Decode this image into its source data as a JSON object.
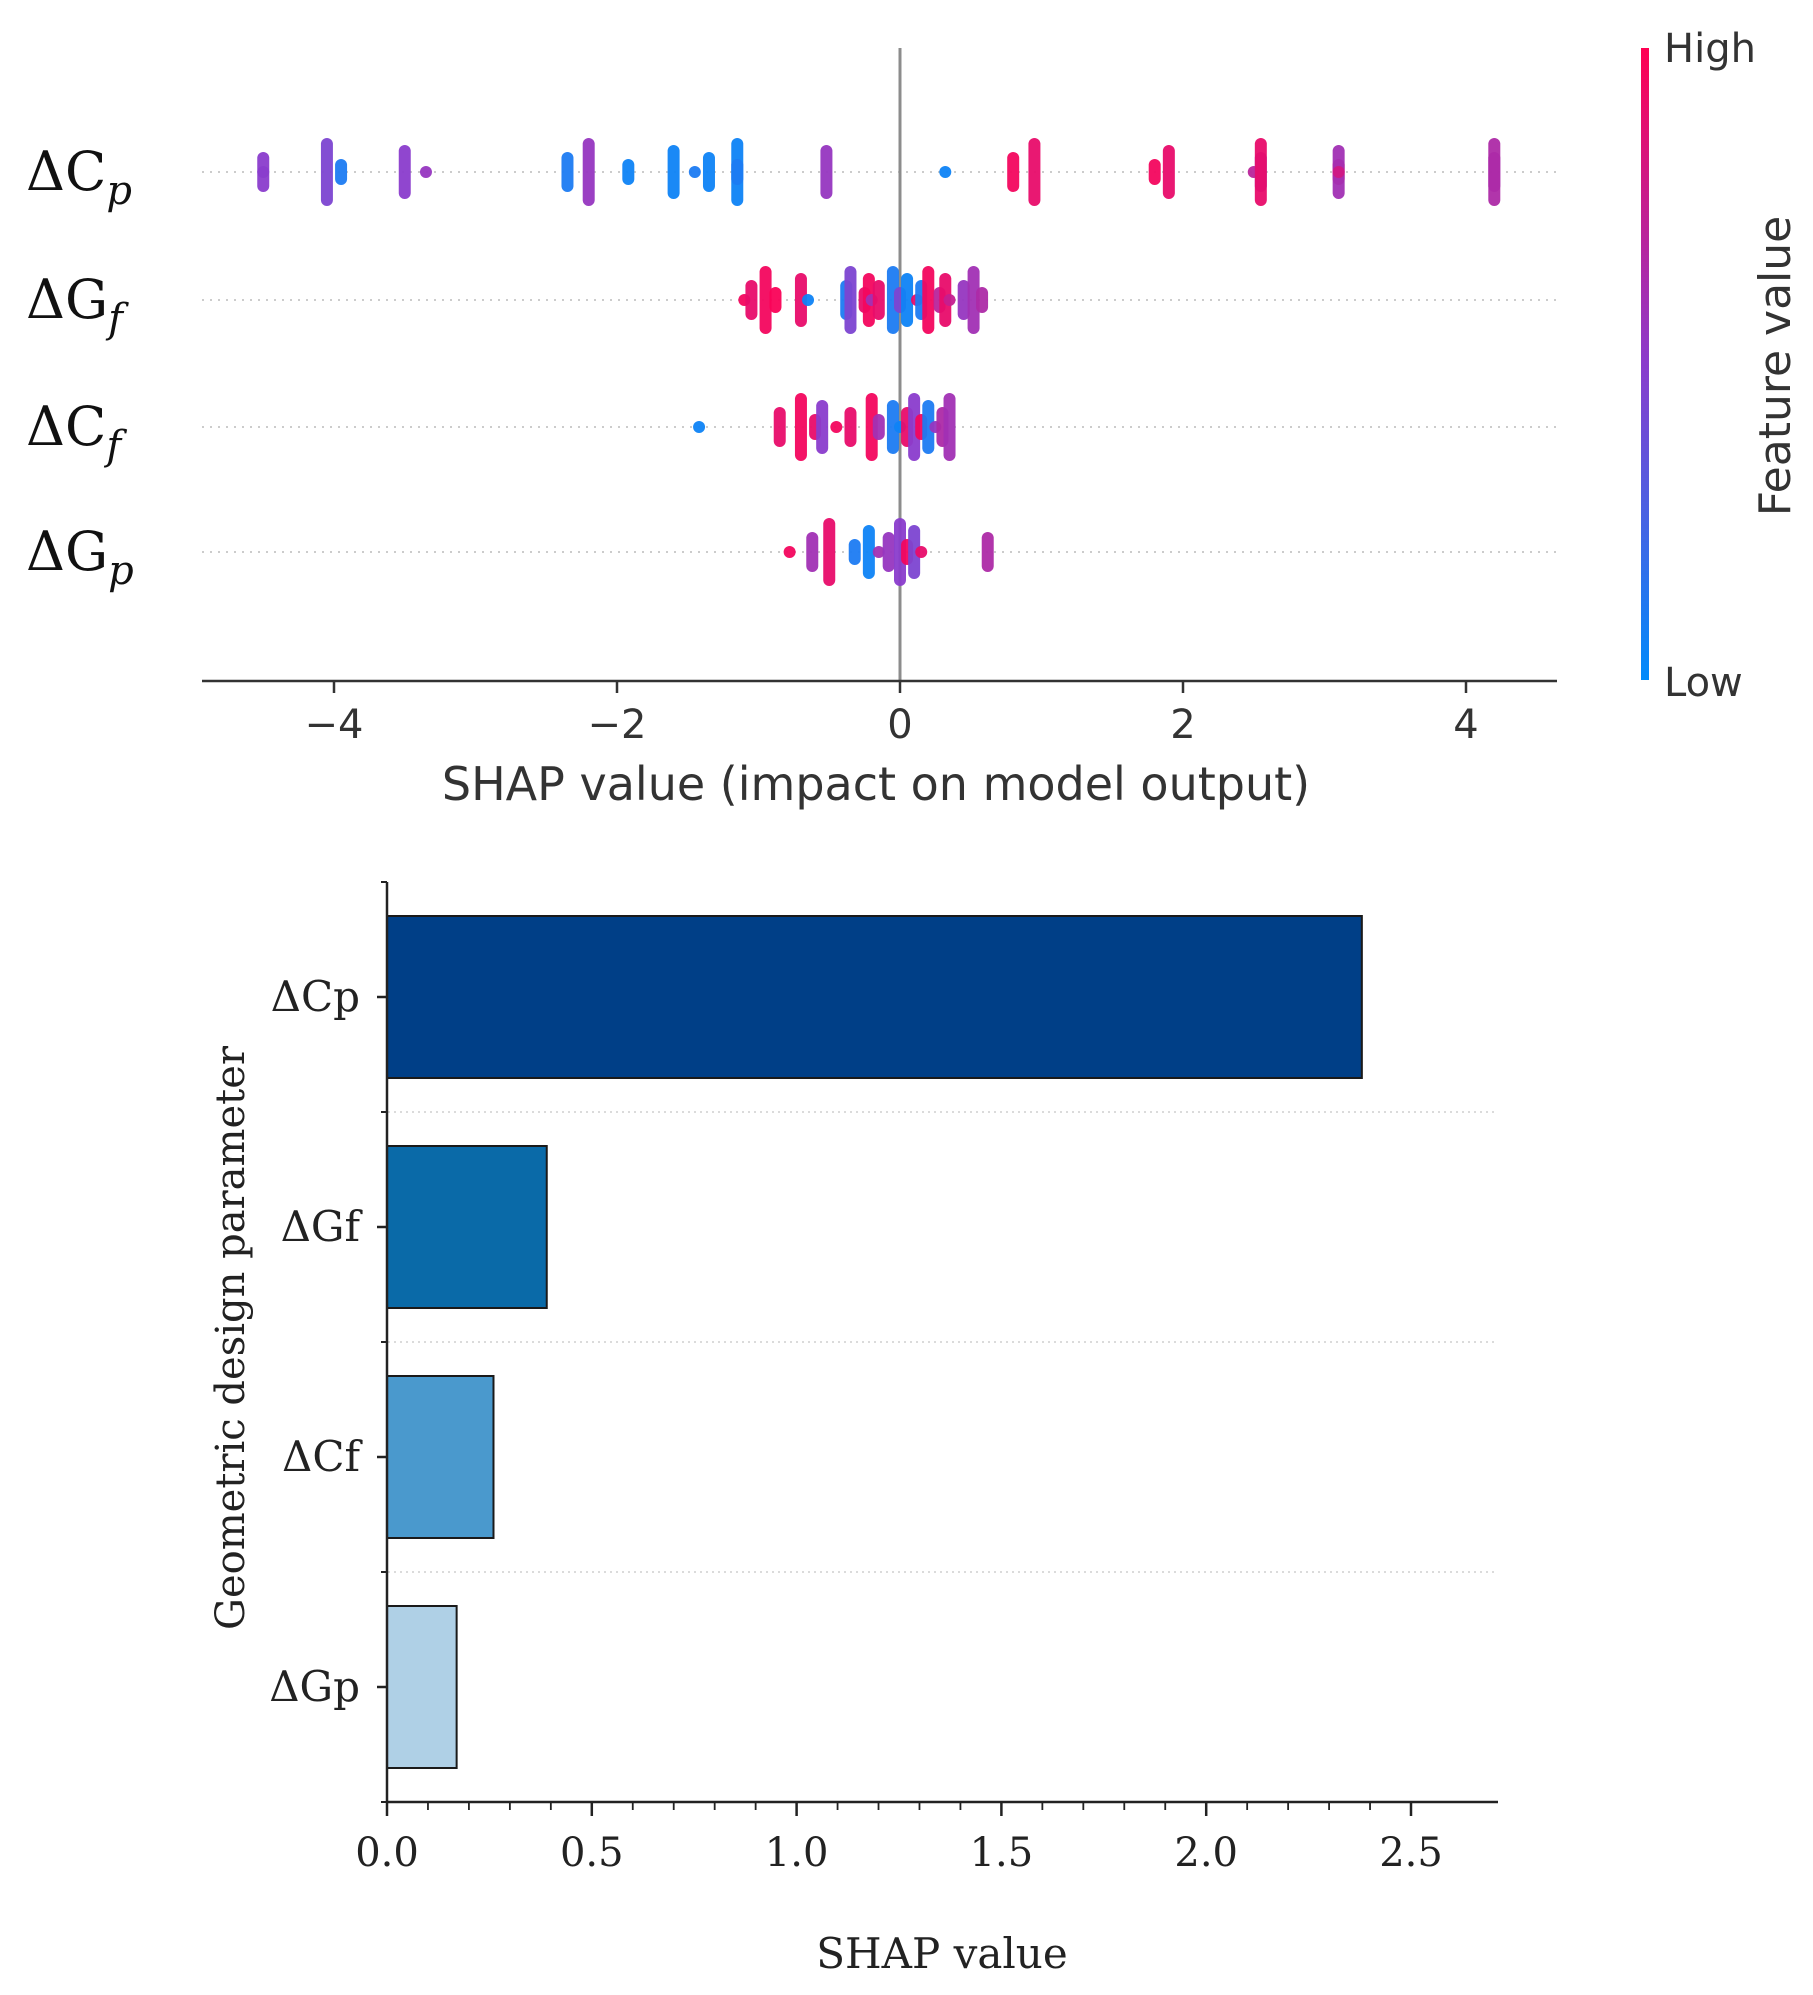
{
  "chart_data": [
    {
      "type": "scatter",
      "subtype": "shap-beeswarm",
      "xlabel": "SHAP value (impact on model output)",
      "xlim": [
        -4.9,
        4.6
      ],
      "xticks": [
        -4,
        -2,
        0,
        2,
        4
      ],
      "xtick_labels": [
        "−4",
        "−2",
        "0",
        "2",
        "4"
      ],
      "features": [
        {
          "name": "ΔC",
          "sub": "p"
        },
        {
          "name": "ΔG",
          "sub": "f"
        },
        {
          "name": "ΔC",
          "sub": "f"
        },
        {
          "name": "ΔG",
          "sub": "p"
        }
      ],
      "colorbar": {
        "label": "Feature value",
        "high_label": "High",
        "low_label": "Low",
        "high_color": "#ff0052",
        "mid_color": "#8a3ccc",
        "low_color": "#008bfb"
      },
      "points": [
        [
          [
            -4.5,
            0.45
          ],
          [
            -4.5,
            0.5
          ],
          [
            -4.05,
            0.45
          ],
          [
            -3.95,
            0.1
          ],
          [
            -3.5,
            0.5
          ],
          [
            -3.35,
            0.55
          ],
          [
            -2.35,
            0.1
          ],
          [
            -2.2,
            0.55
          ],
          [
            -1.92,
            0.05
          ],
          [
            -1.6,
            0.05
          ],
          [
            -1.45,
            0.1
          ],
          [
            -1.35,
            0.05
          ],
          [
            -1.15,
            0.05
          ],
          [
            -1.15,
            0.1
          ],
          [
            -0.52,
            0.55
          ],
          [
            0.32,
            0.05
          ],
          [
            0.8,
            0.95
          ],
          [
            0.95,
            0.9
          ],
          [
            1.8,
            0.95
          ],
          [
            1.9,
            0.9
          ],
          [
            2.5,
            0.7
          ],
          [
            2.55,
            0.55
          ],
          [
            2.55,
            0.9
          ],
          [
            3.1,
            0.95
          ],
          [
            3.1,
            0.6
          ],
          [
            3.1,
            0.8
          ],
          [
            4.2,
            0.6
          ],
          [
            4.2,
            0.65
          ]
        ],
        [
          [
            -1.1,
            0.95
          ],
          [
            -1.05,
            0.9
          ],
          [
            -0.95,
            0.95
          ],
          [
            -0.88,
            0.98
          ],
          [
            -0.7,
            0.9
          ],
          [
            -0.65,
            0.05
          ],
          [
            -0.38,
            0.1
          ],
          [
            -0.35,
            0.45
          ],
          [
            -0.25,
            0.9
          ],
          [
            -0.22,
            0.95
          ],
          [
            -0.2,
            0.6
          ],
          [
            -0.15,
            0.9
          ],
          [
            -0.05,
            0.1
          ],
          [
            0.0,
            0.45
          ],
          [
            0.05,
            0.05
          ],
          [
            0.12,
            0.9
          ],
          [
            0.15,
            0.1
          ],
          [
            0.2,
            0.95
          ],
          [
            0.28,
            0.7
          ],
          [
            0.32,
            0.9
          ],
          [
            0.35,
            0.75
          ],
          [
            0.45,
            0.55
          ],
          [
            0.52,
            0.6
          ],
          [
            0.58,
            0.65
          ]
        ],
        [
          [
            -1.42,
            0.05
          ],
          [
            -0.85,
            0.9
          ],
          [
            -0.7,
            0.95
          ],
          [
            -0.6,
            0.9
          ],
          [
            -0.55,
            0.5
          ],
          [
            -0.45,
            0.95
          ],
          [
            -0.35,
            0.9
          ],
          [
            -0.2,
            0.95
          ],
          [
            -0.15,
            0.6
          ],
          [
            -0.05,
            0.1
          ],
          [
            0.0,
            0.05
          ],
          [
            0.05,
            0.9
          ],
          [
            0.1,
            0.5
          ],
          [
            0.15,
            0.95
          ],
          [
            0.2,
            0.1
          ],
          [
            0.25,
            0.55
          ],
          [
            0.3,
            0.65
          ],
          [
            0.35,
            0.6
          ]
        ],
        [
          [
            -0.78,
            0.95
          ],
          [
            -0.62,
            0.6
          ],
          [
            -0.5,
            0.9
          ],
          [
            -0.32,
            0.1
          ],
          [
            -0.22,
            0.05
          ],
          [
            -0.15,
            0.6
          ],
          [
            -0.08,
            0.55
          ],
          [
            0.0,
            0.5
          ],
          [
            0.05,
            0.95
          ],
          [
            0.1,
            0.45
          ],
          [
            0.15,
            0.9
          ],
          [
            0.62,
            0.65
          ]
        ]
      ]
    },
    {
      "type": "bar",
      "orientation": "horizontal",
      "categories": [
        "ΔCp",
        "ΔGf",
        "ΔCf",
        "ΔGp"
      ],
      "values": [
        2.38,
        0.39,
        0.26,
        0.17
      ],
      "colors": [
        "#003f87",
        "#0a6aa8",
        "#4a99cd",
        "#afd0e6"
      ],
      "xlabel": "SHAP value",
      "ylabel": "Geometric design parameter",
      "xlim": [
        0,
        2.6
      ],
      "xticks": [
        0.0,
        0.5,
        1.0,
        1.5,
        2.0,
        2.5
      ],
      "xtick_labels": [
        "0.0",
        "0.5",
        "1.0",
        "1.5",
        "2.0",
        "2.5"
      ]
    }
  ]
}
